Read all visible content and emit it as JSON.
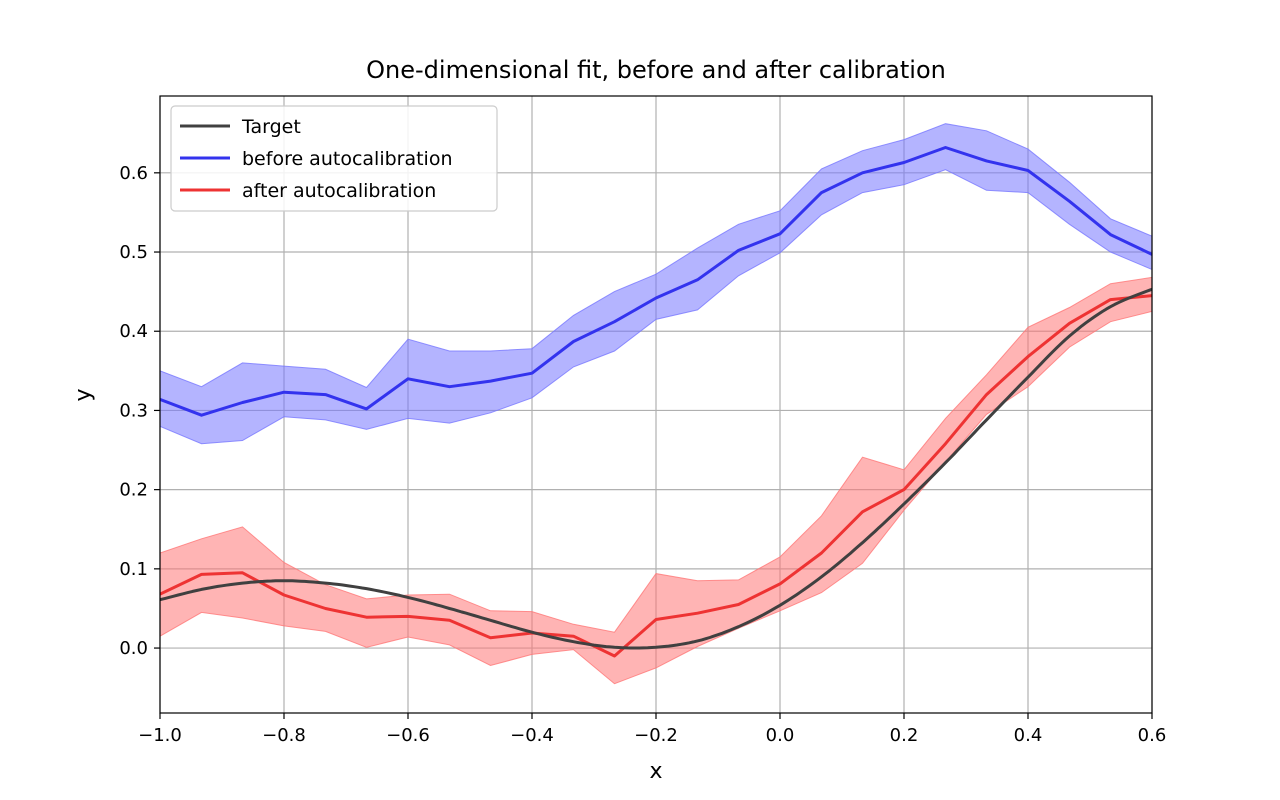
{
  "chart_data": {
    "type": "line",
    "title": "One-dimensional fit, before and after calibration",
    "xlabel": "x",
    "ylabel": "y",
    "xlim": [
      -1.0,
      0.6
    ],
    "ylim": [
      -0.082,
      0.697
    ],
    "grid": true,
    "legend_position": "top-left",
    "x_ticks": [
      -1.0,
      -0.8,
      -0.6,
      -0.4,
      -0.2,
      0.0,
      0.2,
      0.4,
      0.6
    ],
    "x_tick_labels": [
      "−1.0",
      "−0.8",
      "−0.6",
      "−0.4",
      "−0.2",
      "0.0",
      "0.2",
      "0.4",
      "0.6"
    ],
    "y_ticks": [
      0.0,
      0.1,
      0.2,
      0.3,
      0.4,
      0.5,
      0.6
    ],
    "y_tick_labels": [
      "0.0",
      "0.1",
      "0.2",
      "0.3",
      "0.4",
      "0.5",
      "0.6"
    ],
    "x": [
      -1.0,
      -0.933,
      -0.867,
      -0.8,
      -0.733,
      -0.667,
      -0.6,
      -0.533,
      -0.467,
      -0.4,
      -0.333,
      -0.267,
      -0.2,
      -0.133,
      -0.067,
      0.0,
      0.067,
      0.133,
      0.2,
      0.267,
      0.333,
      0.4,
      0.467,
      0.533,
      0.6
    ],
    "series": [
      {
        "name": "Target",
        "color": "#404040",
        "band_color": null,
        "values": [
          0.061,
          0.074,
          0.082,
          0.085,
          0.082,
          0.075,
          0.064,
          0.05,
          0.035,
          0.02,
          0.008,
          0.001,
          0.001,
          0.009,
          0.027,
          0.054,
          0.09,
          0.133,
          0.182,
          0.234,
          0.288,
          0.342,
          0.394,
          0.431,
          0.453
        ],
        "lower": null,
        "upper": null
      },
      {
        "name": "before autocalibration",
        "color": "#3333ee",
        "band_color": "#7777ff",
        "values": [
          0.314,
          0.294,
          0.31,
          0.323,
          0.32,
          0.302,
          0.34,
          0.33,
          0.337,
          0.347,
          0.387,
          0.412,
          0.442,
          0.465,
          0.502,
          0.523,
          0.575,
          0.6,
          0.613,
          0.632,
          0.615,
          0.603,
          0.564,
          0.522,
          0.497
        ],
        "lower": [
          0.28,
          0.258,
          0.262,
          0.292,
          0.288,
          0.276,
          0.29,
          0.284,
          0.297,
          0.316,
          0.355,
          0.375,
          0.415,
          0.427,
          0.47,
          0.499,
          0.547,
          0.575,
          0.585,
          0.604,
          0.578,
          0.575,
          0.535,
          0.5,
          0.478
        ],
        "upper": [
          0.35,
          0.33,
          0.36,
          0.356,
          0.352,
          0.329,
          0.39,
          0.375,
          0.375,
          0.378,
          0.42,
          0.45,
          0.472,
          0.505,
          0.535,
          0.552,
          0.605,
          0.628,
          0.642,
          0.662,
          0.653,
          0.63,
          0.588,
          0.542,
          0.52
        ]
      },
      {
        "name": "after autocalibration",
        "color": "#ee3333",
        "band_color": "#ff7777",
        "values": [
          0.068,
          0.093,
          0.095,
          0.067,
          0.05,
          0.039,
          0.04,
          0.035,
          0.013,
          0.019,
          0.015,
          -0.01,
          0.036,
          0.044,
          0.055,
          0.081,
          0.12,
          0.172,
          0.2,
          0.258,
          0.32,
          0.368,
          0.41,
          0.44,
          0.445
        ],
        "lower": [
          0.015,
          0.045,
          0.038,
          0.028,
          0.021,
          0.001,
          0.014,
          0.004,
          -0.022,
          -0.008,
          -0.002,
          -0.045,
          -0.025,
          0.002,
          0.025,
          0.047,
          0.07,
          0.107,
          0.174,
          0.235,
          0.295,
          0.33,
          0.38,
          0.412,
          0.425
        ],
        "upper": [
          0.12,
          0.138,
          0.153,
          0.108,
          0.08,
          0.062,
          0.067,
          0.068,
          0.047,
          0.046,
          0.03,
          0.02,
          0.094,
          0.085,
          0.086,
          0.115,
          0.167,
          0.241,
          0.225,
          0.29,
          0.345,
          0.405,
          0.43,
          0.46,
          0.468
        ]
      }
    ]
  }
}
